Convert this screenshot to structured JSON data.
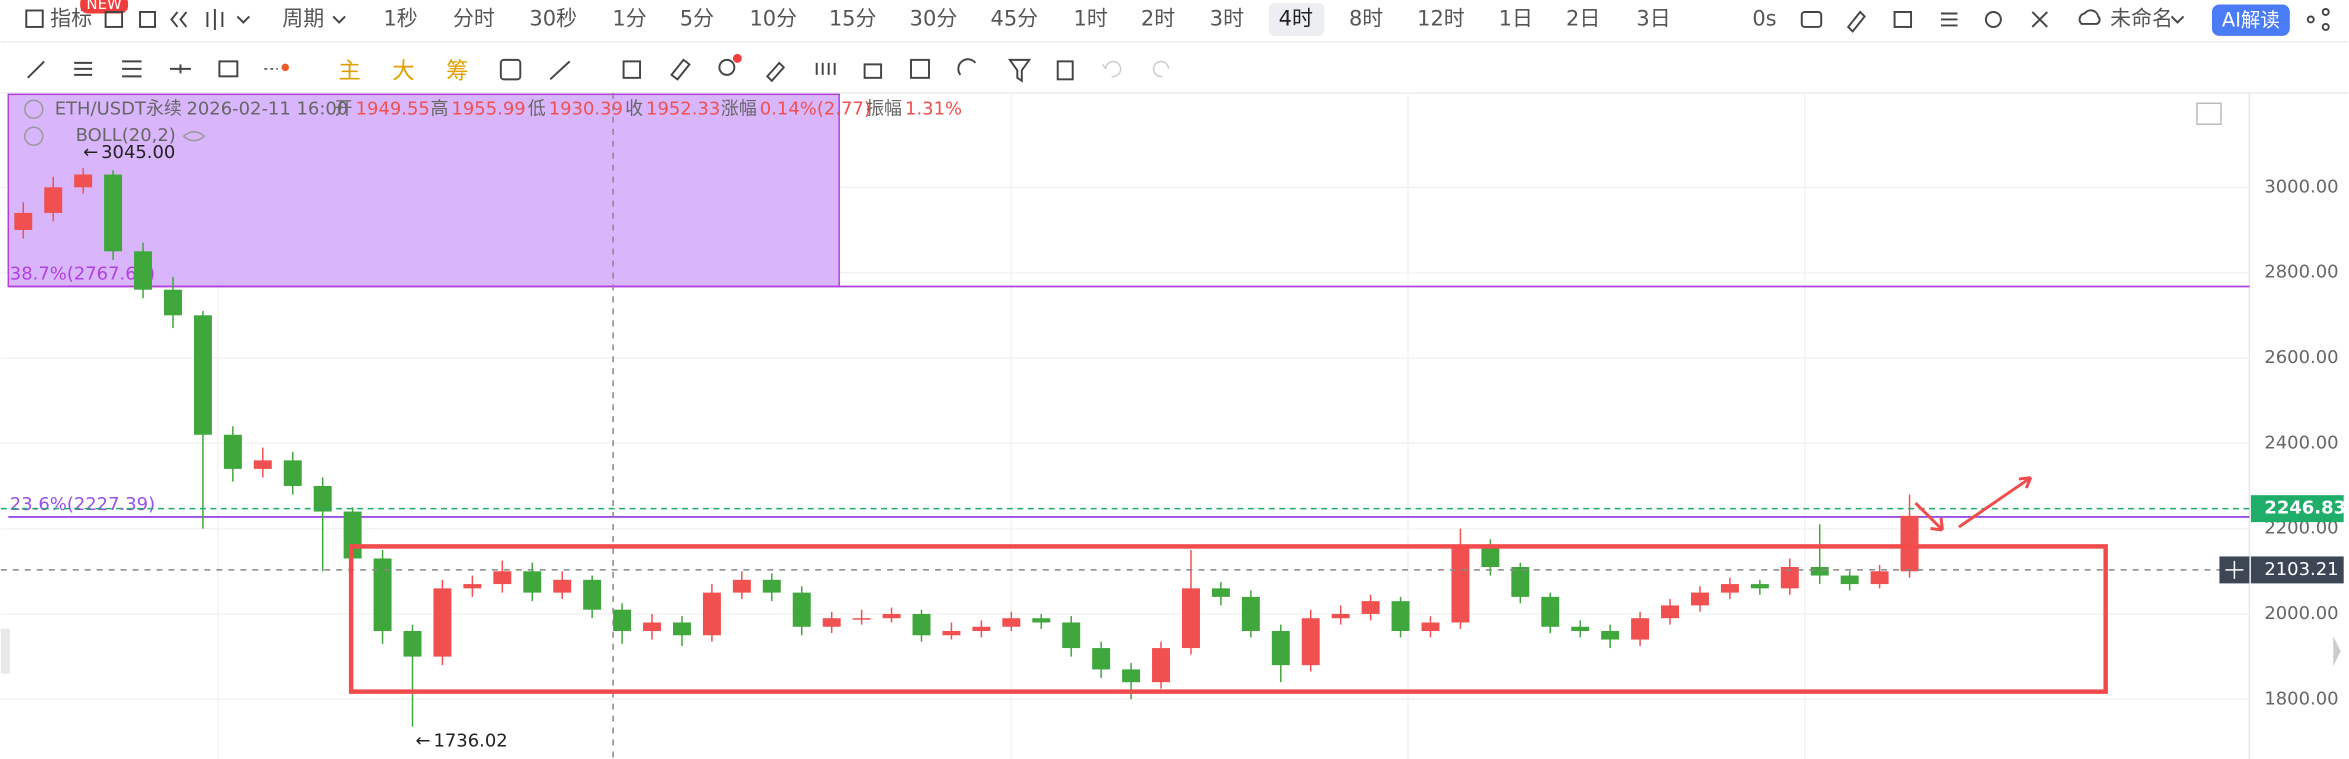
{
  "toolbar": {
    "indicator": "指标",
    "badge": "NEW",
    "period": "周期",
    "intervals": [
      "1秒",
      "分时",
      "30秒",
      "1分",
      "5分",
      "10分",
      "15分",
      "30分",
      "45分",
      "1时",
      "2时",
      "3时",
      "4时",
      "8时",
      "12时",
      "1日",
      "2日",
      "3日"
    ],
    "active": 12,
    "timer": "0s",
    "layout_name": "未命名",
    "ai": "AI解读"
  },
  "drawing_tools": [
    "主",
    "大",
    "筹"
  ],
  "legend": {
    "symbol": "ETH/USDT永续",
    "time": "2026-02-11 16:00",
    "fields": [
      {
        "label": "开",
        "value": "1949.55"
      },
      {
        "label": "高",
        "value": "1955.99"
      },
      {
        "label": "低",
        "value": "1930.39"
      },
      {
        "label": "收",
        "value": "1952.33"
      },
      {
        "label": "涨幅",
        "value": "0.14%(2.77)"
      },
      {
        "label": "振幅",
        "value": "1.31%"
      }
    ]
  },
  "indicator": "BOLL(20,2)",
  "chart_data": {
    "type": "candlestick",
    "up_color": "#f0504f",
    "down_color": "#3fa73b",
    "ylim": [
      1660,
      3218
    ],
    "yticks": [
      {
        "value": 1800,
        "label": "1800.00"
      },
      {
        "value": 2000,
        "label": "2000.00"
      },
      {
        "value": 2200,
        "label": "2200.00"
      },
      {
        "value": 2400,
        "label": "2400.00"
      },
      {
        "value": 2600,
        "label": "2600.00"
      },
      {
        "value": 2800,
        "label": "2800.00"
      },
      {
        "value": 3000,
        "label": "3000.00"
      }
    ],
    "open": [
      2900,
      2940,
      3000,
      3030,
      2850,
      2760,
      2700,
      2420,
      2340,
      2360,
      2300,
      2240,
      2130,
      1960,
      1900,
      2060,
      2070,
      2100,
      2050,
      2080,
      2010,
      1960,
      1980,
      1950,
      2050,
      2080,
      2050,
      1970,
      1990,
      1990,
      2000,
      1950,
      1960,
      1970,
      1990,
      1980,
      1920,
      1870,
      1840,
      1920,
      2060,
      2040,
      1960,
      1880,
      1990,
      2000,
      2030,
      1960,
      1980,
      2160,
      2110,
      2040,
      1970,
      1960,
      1940,
      1990,
      2020,
      2050,
      2070,
      2060,
      2110,
      2090,
      2070,
      2100
    ],
    "high": [
      2965,
      3025,
      3045,
      3040,
      2870,
      2790,
      2710,
      2440,
      2390,
      2380,
      2320,
      2250,
      2150,
      1975,
      2080,
      2090,
      2125,
      2120,
      2100,
      2090,
      2025,
      2000,
      1995,
      2070,
      2100,
      2095,
      2065,
      2005,
      2010,
      2015,
      2010,
      1980,
      1985,
      2005,
      2000,
      1995,
      1935,
      1885,
      1935,
      2150,
      2075,
      2055,
      1975,
      2010,
      2020,
      2045,
      2040,
      1995,
      2200,
      2175,
      2120,
      2050,
      1985,
      1975,
      2005,
      2035,
      2065,
      2085,
      2080,
      2130,
      2210,
      2100,
      2115,
      2280
    ],
    "low": [
      2880,
      2920,
      2985,
      2830,
      2740,
      2670,
      2200,
      2310,
      2320,
      2280,
      2100,
      2110,
      1930,
      1736.02,
      1880,
      2040,
      2050,
      2030,
      2035,
      1990,
      1930,
      1940,
      1925,
      1935,
      2035,
      2030,
      1950,
      1955,
      1975,
      1980,
      1935,
      1940,
      1945,
      1960,
      1965,
      1900,
      1850,
      1800,
      1825,
      1905,
      2020,
      1945,
      1840,
      1865,
      1975,
      1985,
      1945,
      1945,
      1965,
      2090,
      2025,
      1955,
      1945,
      1920,
      1925,
      1975,
      2005,
      2035,
      2045,
      2045,
      2070,
      2055,
      2060,
      2085
    ],
    "close": [
      2940,
      3000,
      3030,
      2850,
      2760,
      2700,
      2420,
      2340,
      2360,
      2300,
      2240,
      2130,
      1960,
      1900,
      2060,
      2070,
      2100,
      2050,
      2080,
      2010,
      1960,
      1980,
      1950,
      2050,
      2080,
      2050,
      1970,
      1990,
      1990,
      2000,
      1950,
      1960,
      1970,
      1990,
      1980,
      1920,
      1870,
      1840,
      1920,
      2060,
      2040,
      1960,
      1880,
      1990,
      2000,
      2030,
      1960,
      1980,
      2160,
      2110,
      2040,
      1970,
      1960,
      1940,
      1990,
      2020,
      2050,
      2070,
      2060,
      2110,
      2090,
      2070,
      2100,
      2230
    ],
    "max_marker": {
      "value": 3045,
      "label": "3045.00"
    },
    "min_marker": {
      "value": 1736.02,
      "label": "1736.02"
    },
    "fib_levels": [
      {
        "value": 2767.6,
        "label": "38.7%(2767.60)",
        "color": "#b040e0"
      },
      {
        "value": 2227.39,
        "label": "23.6%(2227.39)",
        "color": "#9c4fe6"
      }
    ],
    "last_price": {
      "value": 2246.83,
      "label": "2246.83",
      "color": "#1fae6a"
    },
    "crosshair": {
      "value": 2103.21,
      "label": "2103.21"
    }
  }
}
